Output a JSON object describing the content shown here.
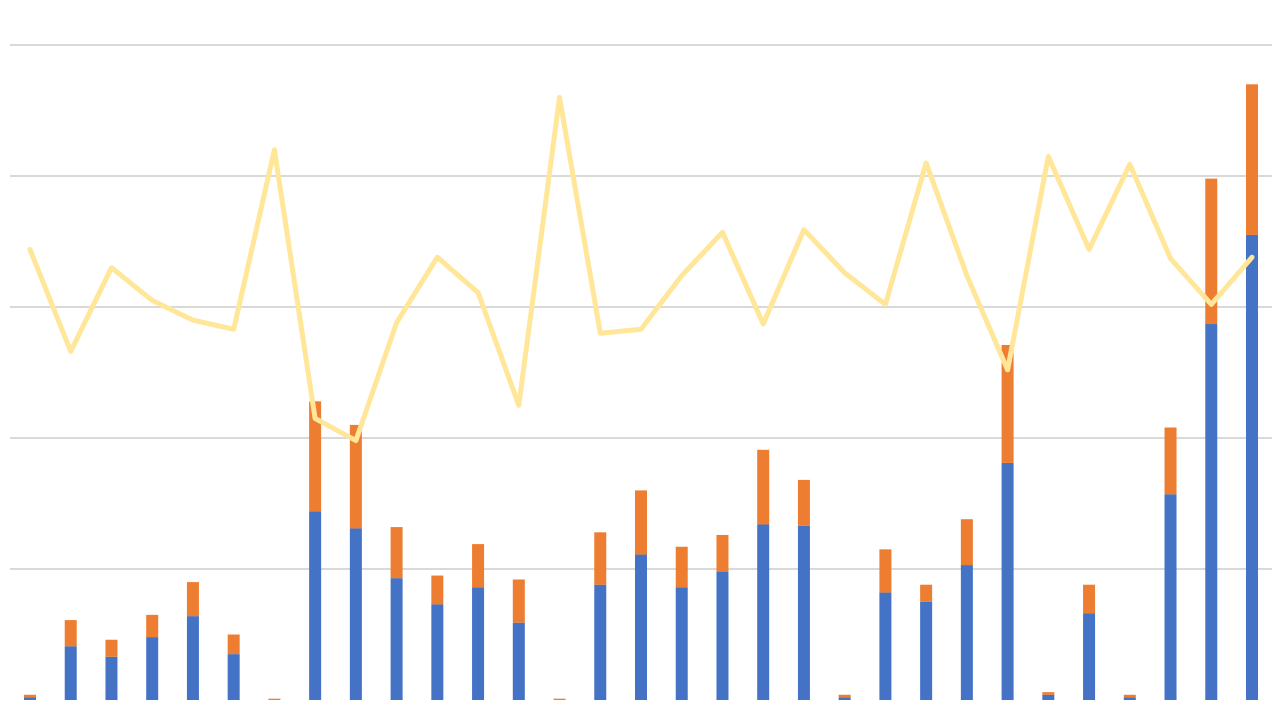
{
  "chart_data": {
    "type": "bar",
    "stacked": true,
    "title": "",
    "xlabel": "",
    "ylabel": "",
    "ylim": [
      0,
      500
    ],
    "grid": true,
    "legend": "none",
    "x": [
      1,
      2,
      3,
      4,
      5,
      6,
      7,
      8,
      9,
      10,
      11,
      12,
      13,
      14,
      15,
      16,
      17,
      18,
      19,
      20,
      21,
      22,
      23,
      24,
      25,
      26,
      27,
      28,
      29,
      30,
      31
    ],
    "series": [
      {
        "type": "bar",
        "color": "#4472C4",
        "values": [
          2,
          41,
          33,
          48,
          64,
          35,
          0,
          144,
          131,
          93,
          73,
          86,
          59,
          0,
          88,
          111,
          86,
          98,
          134,
          133,
          2,
          82,
          75,
          103,
          181,
          4,
          66,
          2,
          157,
          287,
          355
        ]
      },
      {
        "type": "bar",
        "color": "#ED7D31",
        "values": [
          2,
          20,
          13,
          17,
          26,
          15,
          1,
          84,
          79,
          39,
          22,
          33,
          33,
          1,
          40,
          49,
          31,
          28,
          57,
          35,
          2,
          33,
          13,
          35,
          90,
          2,
          22,
          2,
          51,
          111,
          115
        ]
      },
      {
        "type": "line",
        "color": "#FFE699",
        "values": [
          344,
          266,
          330,
          305,
          290,
          283,
          420,
          215,
          198,
          288,
          338,
          311,
          225,
          460,
          280,
          283,
          324,
          357,
          287,
          359,
          326,
          302,
          410,
          324,
          252,
          415,
          344,
          409,
          337,
          302,
          338
        ]
      }
    ]
  }
}
